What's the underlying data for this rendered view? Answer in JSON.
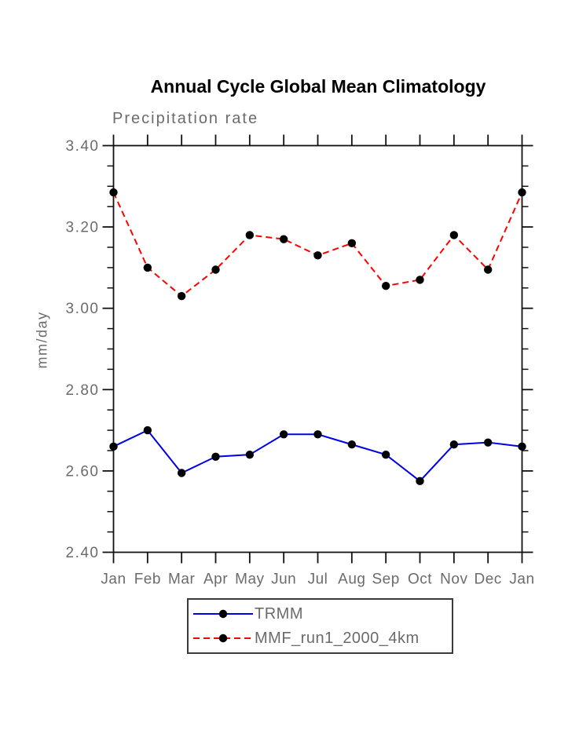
{
  "title": "Annual Cycle Global Mean Climatology",
  "subtitle": "Precipitation rate",
  "chart_data": {
    "type": "line",
    "title": "Annual Cycle Global Mean Climatology",
    "subtitle": "Precipitation rate",
    "ylabel": "mm/day",
    "xlabel": "",
    "categories": [
      "Jan",
      "Feb",
      "Mar",
      "Apr",
      "May",
      "Jun",
      "Jul",
      "Aug",
      "Sep",
      "Oct",
      "Nov",
      "Dec",
      "Jan"
    ],
    "series": [
      {
        "name": "TRMM",
        "color": "#0000e6",
        "line_style": "solid",
        "marker": "filled-circle",
        "marker_color": "#000000",
        "values": [
          2.66,
          2.7,
          2.595,
          2.635,
          2.64,
          2.69,
          2.69,
          2.665,
          2.64,
          2.575,
          2.665,
          2.67,
          2.66
        ]
      },
      {
        "name": "MMF_run1_2000_4km",
        "color": "#ff0000",
        "line_style": "dashed",
        "marker": "filled-circle",
        "marker_color": "#000000",
        "values": [
          3.285,
          3.1,
          3.03,
          3.095,
          3.18,
          3.17,
          3.13,
          3.16,
          3.055,
          3.07,
          3.18,
          3.095,
          3.285
        ]
      }
    ],
    "ylim": [
      2.4,
      3.4
    ],
    "yticks": [
      {
        "label": "3.40",
        "value": 3.4
      },
      {
        "label": "3.20",
        "value": 3.2
      },
      {
        "label": "3.00",
        "value": 3.0
      },
      {
        "label": "2.80",
        "value": 2.8
      },
      {
        "label": "2.60",
        "value": 2.6
      },
      {
        "label": "2.40",
        "value": 2.4
      }
    ],
    "minor_tick_step": 0.05,
    "grid": false,
    "legend_position": "bottom-center",
    "axis_color": "#111111",
    "label_color": "#6b6b6b"
  }
}
